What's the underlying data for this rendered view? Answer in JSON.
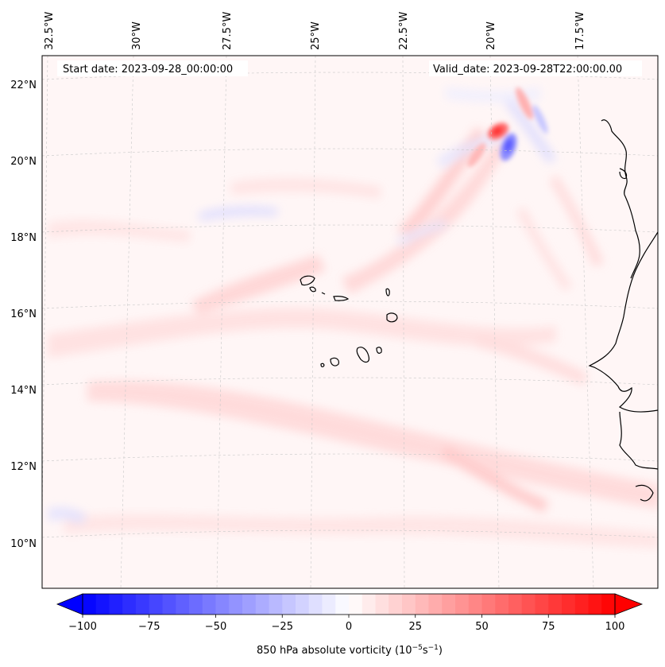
{
  "map": {
    "start_date_text": "Start date: 2023-09-28_00:00:00",
    "valid_date_text": "Valid_date: 2023-09-28T22:00:00.00",
    "lon_ticks": [
      "32.5°W",
      "30°W",
      "27.5°W",
      "25°W",
      "22.5°W",
      "20°W",
      "17.5°W"
    ],
    "lat_ticks": [
      "22°N",
      "20°N",
      "18°N",
      "16°N",
      "14°N",
      "12°N",
      "10°N"
    ],
    "extent": {
      "lon_min": -33.0,
      "lon_max": -16.0,
      "lat_min": 8.8,
      "lat_max": 22.7
    },
    "field": "850 hPa absolute vorticity",
    "colorbar": {
      "label_text": "850 hPa absolute vorticity (10",
      "label_exp1": "−5",
      "label_unit": "s",
      "label_exp2": "−1",
      "label_close": ")",
      "ticks": [
        "−100",
        "−75",
        "−50",
        "−25",
        "0",
        "25",
        "50",
        "75",
        "100"
      ],
      "min": -100,
      "max": 100,
      "colormap": "bwr",
      "low_color": "#0000ff",
      "mid_color": "#ffffff",
      "high_color": "#ff0000"
    },
    "islands": [
      "Santo Antão",
      "São Vicente",
      "Santa Luzia",
      "São Nicolau",
      "Sal",
      "Boa Vista",
      "Maio",
      "Santiago",
      "Fogo",
      "Brava"
    ]
  }
}
